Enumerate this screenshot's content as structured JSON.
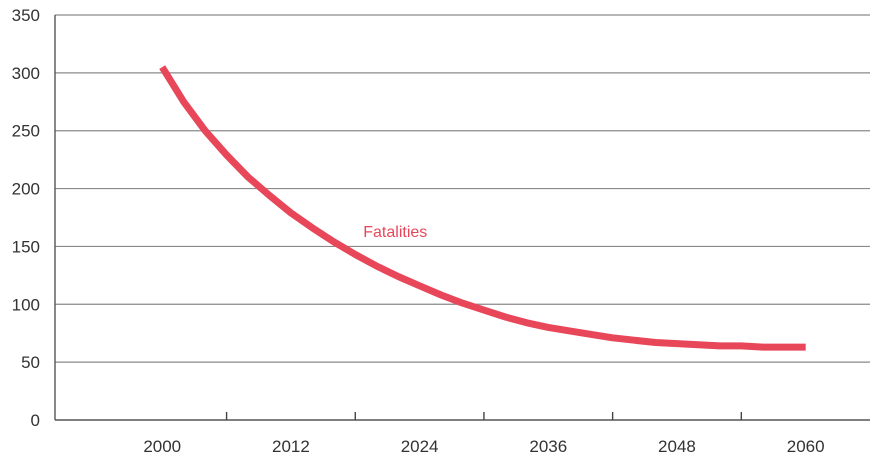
{
  "chart_data": {
    "type": "line",
    "title": "",
    "xlabel": "",
    "ylabel": "",
    "xlim": [
      1990,
      2066
    ],
    "ylim": [
      0,
      350
    ],
    "grid": true,
    "x_ticks": [
      2000,
      2012,
      2024,
      2036,
      2048,
      2060
    ],
    "y_ticks": [
      0,
      50,
      100,
      150,
      200,
      250,
      300,
      350
    ],
    "series": [
      {
        "name": "Fatalities",
        "color": "#e8475a",
        "x": [
          2000,
          2002,
          2004,
          2006,
          2008,
          2010,
          2012,
          2014,
          2016,
          2018,
          2020,
          2022,
          2024,
          2026,
          2028,
          2030,
          2032,
          2034,
          2036,
          2038,
          2040,
          2042,
          2044,
          2046,
          2048,
          2050,
          2052,
          2054,
          2056,
          2058,
          2060
        ],
        "values": [
          305,
          275,
          250,
          229,
          210,
          194,
          179,
          166,
          154,
          143,
          133,
          124,
          116,
          108,
          101,
          95,
          89,
          84,
          80,
          77,
          74,
          71,
          69,
          67,
          66,
          65,
          64,
          64,
          63,
          63,
          63
        ]
      }
    ]
  }
}
